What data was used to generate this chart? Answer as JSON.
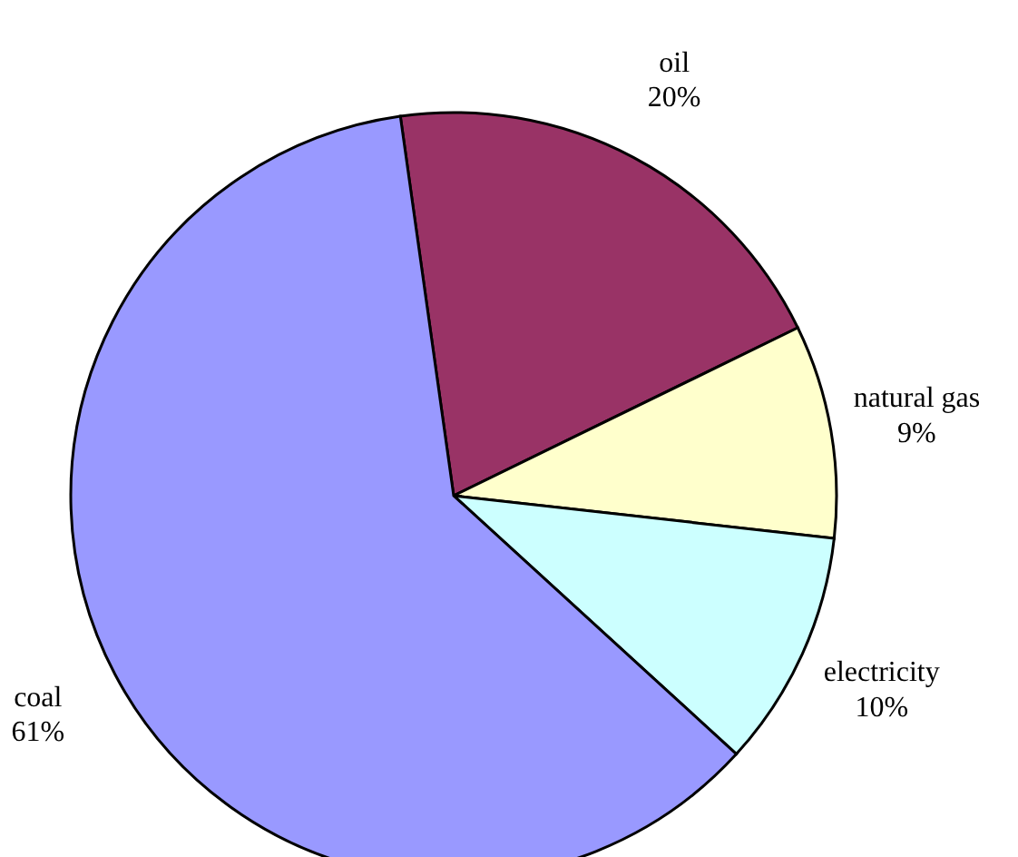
{
  "chart_data": {
    "type": "pie",
    "categories": [
      "oil",
      "natural gas",
      "electricity",
      "coal"
    ],
    "values": [
      20,
      9,
      10,
      61
    ],
    "colors": [
      "#993366",
      "#ffffcc",
      "#ccffff",
      "#9999ff"
    ],
    "value_labels": [
      "20%",
      "9%",
      "10%",
      "61%"
    ],
    "legend": false
  }
}
